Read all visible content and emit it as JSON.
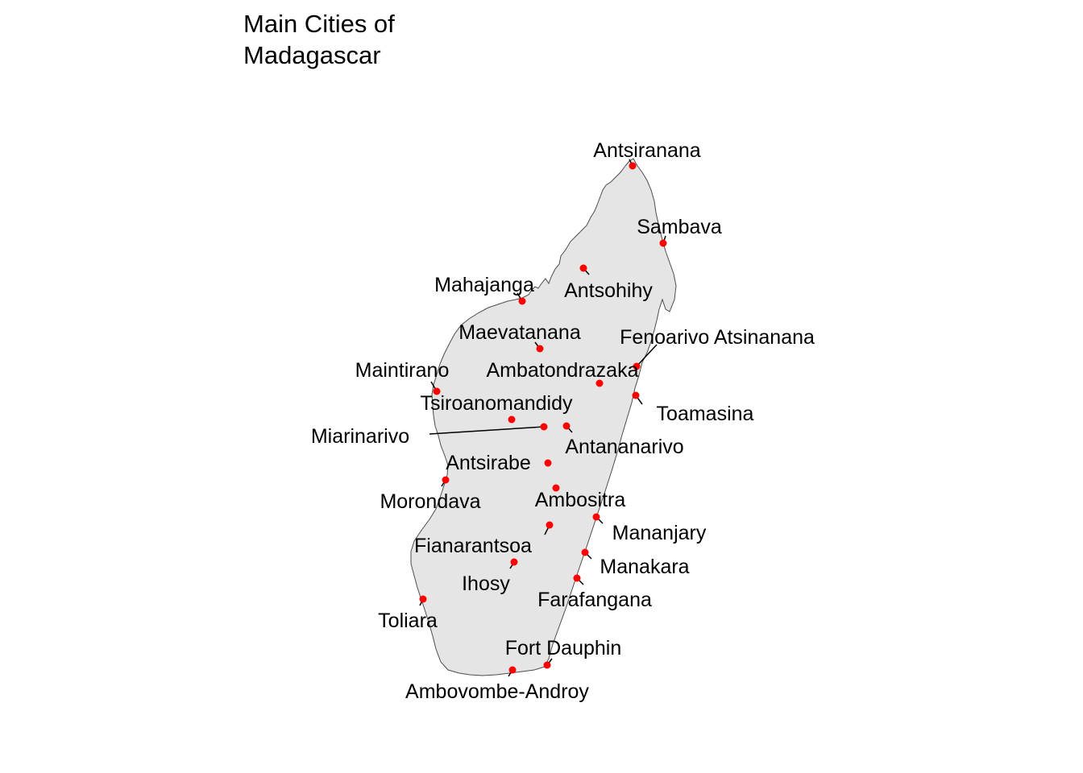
{
  "title": {
    "line1": "Main Cities of",
    "line2": "Madagascar"
  },
  "colors": {
    "land_fill": "#e5e5e5",
    "coast_stroke": "#4d4d4d",
    "city_marker": "#ff0000",
    "leader_line": "#000000",
    "label_text": "#000000"
  },
  "cities": [
    {
      "name": "Antsiranana"
    },
    {
      "name": "Sambava"
    },
    {
      "name": "Antsohihy"
    },
    {
      "name": "Mahajanga"
    },
    {
      "name": "Maevatanana"
    },
    {
      "name": "Fenoarivo Atsinanana"
    },
    {
      "name": "Maintirano"
    },
    {
      "name": "Ambatondrazaka"
    },
    {
      "name": "Toamasina"
    },
    {
      "name": "Tsiroanomandidy"
    },
    {
      "name": "Miarinarivo"
    },
    {
      "name": "Antananarivo"
    },
    {
      "name": "Antsirabe"
    },
    {
      "name": "Morondava"
    },
    {
      "name": "Ambositra"
    },
    {
      "name": "Mananjary"
    },
    {
      "name": "Fianarantsoa"
    },
    {
      "name": "Manakara"
    },
    {
      "name": "Ihosy"
    },
    {
      "name": "Farafangana"
    },
    {
      "name": "Toliara"
    },
    {
      "name": "Fort Dauphin"
    },
    {
      "name": "Ambovombe-Androy"
    }
  ]
}
